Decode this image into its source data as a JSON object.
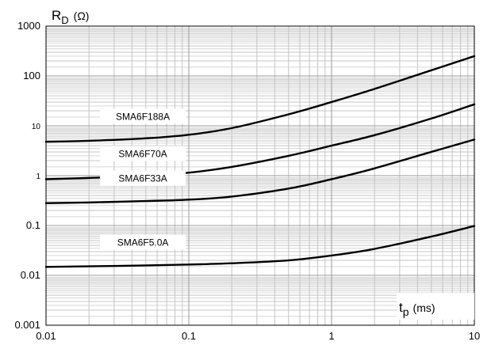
{
  "chart_data": {
    "type": "line",
    "xscale": "log",
    "yscale": "log",
    "xlim": [
      0.01,
      10
    ],
    "ylim": [
      0.001,
      1000
    ],
    "grid": true,
    "xlabel_main": "t",
    "xlabel_sub": "p",
    "xlabel_unit": "(ms)",
    "ylabel_main": "R",
    "ylabel_sub": "D",
    "ylabel_unit": "(Ω)",
    "x_ticks": [
      {
        "value": 0.01,
        "label": "0.01"
      },
      {
        "value": 0.1,
        "label": "0.1"
      },
      {
        "value": 1,
        "label": "1"
      },
      {
        "value": 10,
        "label": "10"
      }
    ],
    "y_ticks": [
      {
        "value": 0.001,
        "label": "0.001"
      },
      {
        "value": 0.01,
        "label": "0.01"
      },
      {
        "value": 0.1,
        "label": "0.1"
      },
      {
        "value": 1,
        "label": "1"
      },
      {
        "value": 10,
        "label": "10"
      },
      {
        "value": 100,
        "label": "100"
      },
      {
        "value": 1000,
        "label": "1000"
      }
    ],
    "series": [
      {
        "name": "SMA6F188A",
        "x": [
          0.01,
          0.02,
          0.05,
          0.1,
          0.2,
          0.5,
          1,
          2,
          5,
          10
        ],
        "y": [
          4.8,
          5.0,
          5.6,
          6.6,
          9.0,
          17,
          30,
          55,
          130,
          250
        ]
      },
      {
        "name": "SMA6F70A",
        "x": [
          0.01,
          0.02,
          0.05,
          0.1,
          0.2,
          0.5,
          1,
          2,
          5,
          10
        ],
        "y": [
          0.85,
          0.9,
          1.0,
          1.15,
          1.5,
          2.5,
          4.0,
          6.5,
          14,
          27
        ]
      },
      {
        "name": "SMA6F33A",
        "x": [
          0.01,
          0.02,
          0.05,
          0.1,
          0.2,
          0.5,
          1,
          2,
          5,
          10
        ],
        "y": [
          0.28,
          0.29,
          0.31,
          0.33,
          0.38,
          0.55,
          0.85,
          1.4,
          3.0,
          5.3
        ]
      },
      {
        "name": "SMA6F5.0A",
        "x": [
          0.01,
          0.02,
          0.05,
          0.1,
          0.2,
          0.5,
          1,
          2,
          5,
          10
        ],
        "y": [
          0.0148,
          0.0152,
          0.0158,
          0.0165,
          0.0175,
          0.02,
          0.025,
          0.034,
          0.06,
          0.098
        ]
      }
    ]
  }
}
